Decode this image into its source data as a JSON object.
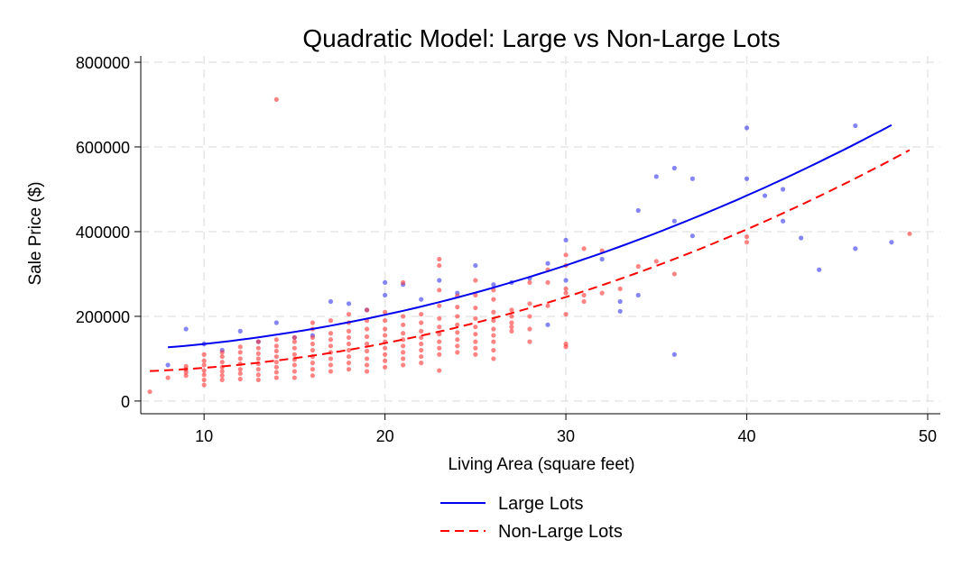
{
  "chart_data": {
    "type": "scatter",
    "title": "Quadratic Model: Large vs Non-Large Lots",
    "xlabel": "Living Area (square feet)",
    "ylabel": "Sale Price ($)",
    "xlim": [
      6.5,
      50.7
    ],
    "ylim": [
      -30000,
      815000
    ],
    "xticks": [
      10,
      20,
      30,
      40,
      50
    ],
    "yticks": [
      0,
      200000,
      400000,
      600000,
      800000
    ],
    "xtick_labels": [
      "10",
      "20",
      "30",
      "40",
      "50"
    ],
    "ytick_labels": [
      "0",
      "200000",
      "400000",
      "600000",
      "800000"
    ],
    "grid": true,
    "legend_position": "bottom",
    "series": [
      {
        "name": "Large Lots",
        "kind": "scatter",
        "color": "#3333ee",
        "points": [
          [
            8,
            85000
          ],
          [
            9,
            170000
          ],
          [
            10,
            135000
          ],
          [
            11,
            120000
          ],
          [
            12,
            165000
          ],
          [
            13,
            140000
          ],
          [
            14,
            185000
          ],
          [
            15,
            150000
          ],
          [
            16,
            155000
          ],
          [
            17,
            235000
          ],
          [
            18,
            230000
          ],
          [
            19,
            215000
          ],
          [
            20,
            280000
          ],
          [
            20,
            250000
          ],
          [
            21,
            275000
          ],
          [
            22,
            240000
          ],
          [
            23,
            285000
          ],
          [
            24,
            255000
          ],
          [
            25,
            320000
          ],
          [
            26,
            275000
          ],
          [
            27,
            280000
          ],
          [
            28,
            290000
          ],
          [
            29,
            325000
          ],
          [
            29,
            180000
          ],
          [
            30,
            380000
          ],
          [
            30,
            285000
          ],
          [
            32,
            335000
          ],
          [
            33,
            235000
          ],
          [
            33,
            212000
          ],
          [
            34,
            450000
          ],
          [
            34,
            250000
          ],
          [
            35,
            530000
          ],
          [
            36,
            550000
          ],
          [
            36,
            425000
          ],
          [
            36,
            110000
          ],
          [
            37,
            525000
          ],
          [
            37,
            390000
          ],
          [
            40,
            645000
          ],
          [
            40,
            525000
          ],
          [
            41,
            485000
          ],
          [
            42,
            500000
          ],
          [
            42,
            425000
          ],
          [
            43,
            385000
          ],
          [
            44,
            310000
          ],
          [
            46,
            650000
          ],
          [
            46,
            360000
          ],
          [
            48,
            375000
          ]
        ]
      },
      {
        "name": "Non-Large Lots",
        "kind": "scatter",
        "color": "#ff3333",
        "points": [
          [
            7,
            22000
          ],
          [
            8,
            55000
          ],
          [
            9,
            60000
          ],
          [
            9,
            68000
          ],
          [
            9,
            75000
          ],
          [
            9,
            82000
          ],
          [
            10,
            38000
          ],
          [
            10,
            50000
          ],
          [
            10,
            62000
          ],
          [
            10,
            72000
          ],
          [
            10,
            85000
          ],
          [
            10,
            95000
          ],
          [
            10,
            110000
          ],
          [
            11,
            50000
          ],
          [
            11,
            60000
          ],
          [
            11,
            70000
          ],
          [
            11,
            80000
          ],
          [
            11,
            92000
          ],
          [
            11,
            105000
          ],
          [
            11,
            115000
          ],
          [
            12,
            52000
          ],
          [
            12,
            65000
          ],
          [
            12,
            75000
          ],
          [
            12,
            88000
          ],
          [
            12,
            100000
          ],
          [
            12,
            115000
          ],
          [
            12,
            128000
          ],
          [
            13,
            50000
          ],
          [
            13,
            62000
          ],
          [
            13,
            75000
          ],
          [
            13,
            88000
          ],
          [
            13,
            100000
          ],
          [
            13,
            112000
          ],
          [
            13,
            125000
          ],
          [
            13,
            140000
          ],
          [
            14,
            55000
          ],
          [
            14,
            68000
          ],
          [
            14,
            80000
          ],
          [
            14,
            92000
          ],
          [
            14,
            105000
          ],
          [
            14,
            118000
          ],
          [
            14,
            130000
          ],
          [
            14,
            145000
          ],
          [
            14,
            712000
          ],
          [
            15,
            55000
          ],
          [
            15,
            70000
          ],
          [
            15,
            85000
          ],
          [
            15,
            98000
          ],
          [
            15,
            110000
          ],
          [
            15,
            125000
          ],
          [
            15,
            140000
          ],
          [
            15,
            150000
          ],
          [
            16,
            60000
          ],
          [
            16,
            75000
          ],
          [
            16,
            90000
          ],
          [
            16,
            105000
          ],
          [
            16,
            120000
          ],
          [
            16,
            135000
          ],
          [
            16,
            150000
          ],
          [
            16,
            170000
          ],
          [
            16,
            185000
          ],
          [
            17,
            70000
          ],
          [
            17,
            85000
          ],
          [
            17,
            100000
          ],
          [
            17,
            115000
          ],
          [
            17,
            130000
          ],
          [
            17,
            145000
          ],
          [
            17,
            160000
          ],
          [
            17,
            190000
          ],
          [
            18,
            75000
          ],
          [
            18,
            90000
          ],
          [
            18,
            105000
          ],
          [
            18,
            120000
          ],
          [
            18,
            135000
          ],
          [
            18,
            150000
          ],
          [
            18,
            165000
          ],
          [
            18,
            185000
          ],
          [
            18,
            205000
          ],
          [
            19,
            70000
          ],
          [
            19,
            85000
          ],
          [
            19,
            100000
          ],
          [
            19,
            118000
          ],
          [
            19,
            135000
          ],
          [
            19,
            152000
          ],
          [
            19,
            170000
          ],
          [
            19,
            190000
          ],
          [
            19,
            215000
          ],
          [
            20,
            80000
          ],
          [
            20,
            95000
          ],
          [
            20,
            110000
          ],
          [
            20,
            125000
          ],
          [
            20,
            140000
          ],
          [
            20,
            155000
          ],
          [
            20,
            170000
          ],
          [
            20,
            190000
          ],
          [
            20,
            210000
          ],
          [
            21,
            85000
          ],
          [
            21,
            100000
          ],
          [
            21,
            115000
          ],
          [
            21,
            130000
          ],
          [
            21,
            145000
          ],
          [
            21,
            160000
          ],
          [
            21,
            180000
          ],
          [
            21,
            200000
          ],
          [
            21,
            280000
          ],
          [
            22,
            90000
          ],
          [
            22,
            105000
          ],
          [
            22,
            120000
          ],
          [
            22,
            135000
          ],
          [
            22,
            150000
          ],
          [
            22,
            165000
          ],
          [
            22,
            185000
          ],
          [
            22,
            205000
          ],
          [
            23,
            72000
          ],
          [
            23,
            110000
          ],
          [
            23,
            125000
          ],
          [
            23,
            140000
          ],
          [
            23,
            158000
          ],
          [
            23,
            175000
          ],
          [
            23,
            195000
          ],
          [
            23,
            225000
          ],
          [
            23,
            262000
          ],
          [
            23,
            335000
          ],
          [
            23,
            320000
          ],
          [
            24,
            115000
          ],
          [
            24,
            130000
          ],
          [
            24,
            145000
          ],
          [
            24,
            162000
          ],
          [
            24,
            180000
          ],
          [
            24,
            200000
          ],
          [
            24,
            222000
          ],
          [
            24,
            248000
          ],
          [
            25,
            110000
          ],
          [
            25,
            125000
          ],
          [
            25,
            140000
          ],
          [
            25,
            158000
          ],
          [
            25,
            175000
          ],
          [
            25,
            195000
          ],
          [
            25,
            220000
          ],
          [
            25,
            250000
          ],
          [
            25,
            285000
          ],
          [
            26,
            100000
          ],
          [
            26,
            120000
          ],
          [
            26,
            140000
          ],
          [
            26,
            155000
          ],
          [
            26,
            170000
          ],
          [
            26,
            190000
          ],
          [
            26,
            210000
          ],
          [
            26,
            240000
          ],
          [
            26,
            262000
          ],
          [
            27,
            165000
          ],
          [
            27,
            175000
          ],
          [
            27,
            185000
          ],
          [
            27,
            200000
          ],
          [
            27,
            215000
          ],
          [
            28,
            140000
          ],
          [
            28,
            170000
          ],
          [
            28,
            200000
          ],
          [
            28,
            230000
          ],
          [
            28,
            280000
          ],
          [
            29,
            225000
          ],
          [
            29,
            280000
          ],
          [
            29,
            310000
          ],
          [
            30,
            128000
          ],
          [
            30,
            135000
          ],
          [
            30,
            205000
          ],
          [
            30,
            255000
          ],
          [
            30,
            265000
          ],
          [
            30,
            320000
          ],
          [
            30,
            345000
          ],
          [
            31,
            235000
          ],
          [
            31,
            250000
          ],
          [
            31,
            360000
          ],
          [
            32,
            255000
          ],
          [
            32,
            355000
          ],
          [
            33,
            265000
          ],
          [
            34,
            318000
          ],
          [
            35,
            330000
          ],
          [
            36,
            300000
          ],
          [
            40,
            375000
          ],
          [
            40,
            388000
          ],
          [
            49,
            395000
          ]
        ]
      },
      {
        "name": "Large Lots",
        "kind": "fit",
        "color": "#0000ee",
        "x_range": [
          8,
          48
        ],
        "coefficients": [
          114000,
          -320,
          240
        ]
      },
      {
        "name": "Non-Large Lots",
        "kind": "fit",
        "color": "#ff0000",
        "x_range": [
          7,
          49
        ],
        "coefficients": [
          71000,
          -1800,
          254
        ]
      }
    ]
  }
}
